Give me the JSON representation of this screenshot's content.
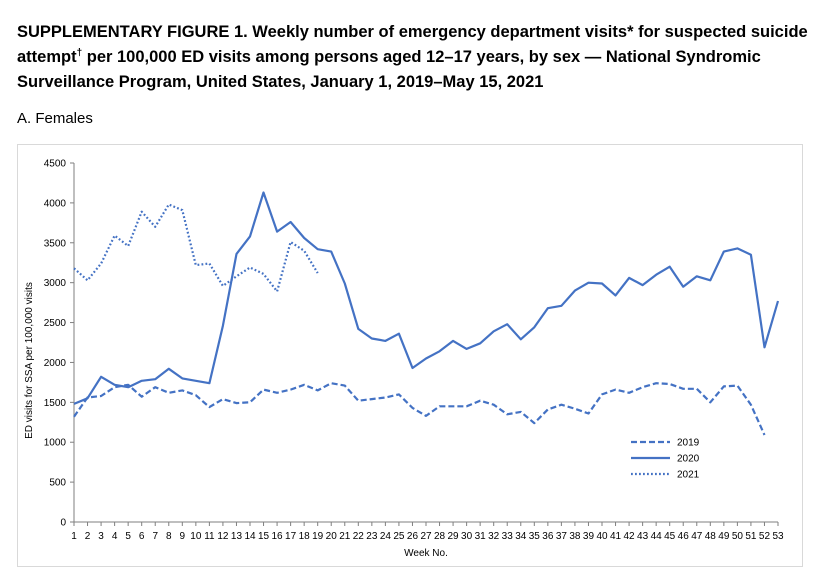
{
  "title": {
    "part1": "SUPPLEMENTARY FIGURE 1. Weekly number of emergency department visits",
    "mark1": "*",
    "part2": " for suspected suicide attempt",
    "mark2": "†",
    "part3": " per 100,000 ED visits among persons aged 12–17 years, by sex — National Syndromic Surveillance Program, United States, January 1, 2019–May 15, 2021"
  },
  "panel_label": "A. Females",
  "chart_data": {
    "type": "line",
    "xlabel": "Week No.",
    "ylabel": "ED visits for SSA per 100,000 visits",
    "ylim": [
      0,
      4500
    ],
    "yticks": [
      0,
      500,
      1000,
      1500,
      2000,
      2500,
      3000,
      3500,
      4000,
      4500
    ],
    "x": [
      1,
      2,
      3,
      4,
      5,
      6,
      7,
      8,
      9,
      10,
      11,
      12,
      13,
      14,
      15,
      16,
      17,
      18,
      19,
      20,
      21,
      22,
      23,
      24,
      25,
      26,
      27,
      28,
      29,
      30,
      31,
      32,
      33,
      34,
      35,
      36,
      37,
      38,
      39,
      40,
      41,
      42,
      43,
      44,
      45,
      46,
      47,
      48,
      49,
      50,
      51,
      52,
      53
    ],
    "grid": false,
    "legend_position": "bottom-right",
    "series": [
      {
        "name": "2019",
        "style": "dashed",
        "color": "#4472c4",
        "values": [
          1320,
          1560,
          1580,
          1690,
          1720,
          1570,
          1690,
          1620,
          1650,
          1590,
          1440,
          1540,
          1490,
          1500,
          1660,
          1620,
          1660,
          1720,
          1650,
          1740,
          1710,
          1520,
          1540,
          1560,
          1600,
          1430,
          1330,
          1450,
          1450,
          1450,
          1520,
          1470,
          1350,
          1380,
          1240,
          1410,
          1470,
          1420,
          1360,
          1600,
          1660,
          1620,
          1690,
          1740,
          1730,
          1670,
          1670,
          1500,
          1700,
          1710,
          1470,
          1090,
          null
        ]
      },
      {
        "name": "2020",
        "style": "solid",
        "color": "#4472c4",
        "values": [
          1480,
          1550,
          1820,
          1720,
          1690,
          1770,
          1790,
          1920,
          1800,
          1770,
          1740,
          2460,
          3360,
          3580,
          4130,
          3640,
          3760,
          3560,
          3420,
          3390,
          2990,
          2420,
          2300,
          2270,
          2360,
          1930,
          2050,
          2140,
          2270,
          2170,
          2240,
          2390,
          2480,
          2290,
          2440,
          2680,
          2710,
          2900,
          3000,
          2990,
          2840,
          3060,
          2970,
          3100,
          3200,
          2950,
          3080,
          3030,
          3390,
          3430,
          3350,
          2190,
          2770
        ]
      },
      {
        "name": "2021",
        "style": "dotted",
        "color": "#4472c4",
        "values": [
          3180,
          3030,
          3240,
          3590,
          3460,
          3890,
          3700,
          3980,
          3910,
          3220,
          3240,
          2960,
          3080,
          3190,
          3110,
          2890,
          3510,
          3400,
          3120,
          null,
          null,
          null,
          null,
          null,
          null,
          null,
          null,
          null,
          null,
          null,
          null,
          null,
          null,
          null,
          null,
          null,
          null,
          null,
          null,
          null,
          null,
          null,
          null,
          null,
          null,
          null,
          null,
          null,
          null,
          null,
          null,
          null,
          null
        ]
      }
    ]
  }
}
